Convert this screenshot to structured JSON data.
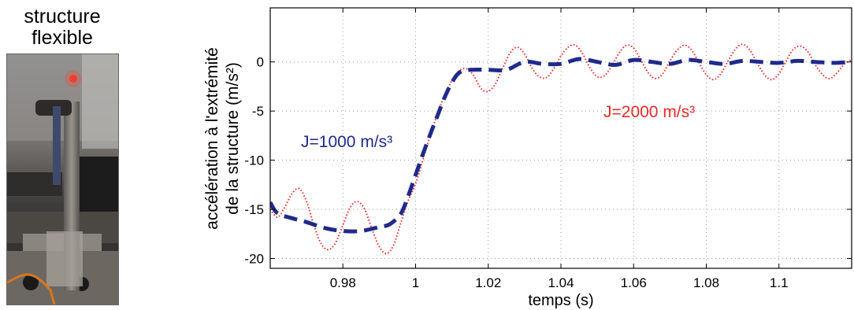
{
  "photo": {
    "title_line1": "structure",
    "title_line2": "flexible"
  },
  "chart_data": {
    "type": "line",
    "xlabel": "temps (s)",
    "ylabel_line1": "accélération à l'extrémité",
    "ylabel_line2": "de la structure (m/s²)",
    "xlim": [
      0.96,
      1.12
    ],
    "ylim": [
      -21,
      5.5
    ],
    "xticks": [
      0.98,
      1,
      1.02,
      1.04,
      1.06,
      1.08,
      1.1
    ],
    "xtick_labels": [
      "0.98",
      "1",
      "1.02",
      "1.04",
      "1.06",
      "1.08",
      "1.1"
    ],
    "yticks": [
      0,
      -5,
      -10,
      -15,
      -20
    ],
    "ytick_labels": [
      "0",
      "-5",
      "-10",
      "-15",
      "-20"
    ],
    "grid": true,
    "series": [
      {
        "name": "J=1000 m/s³",
        "color": "#1f2a8a",
        "style": "dashed",
        "x": [
          0.96,
          0.962,
          0.966,
          0.97,
          0.975,
          0.98,
          0.985,
          0.99,
          0.993,
          0.996,
          0.998,
          1.0,
          1.002,
          1.004,
          1.006,
          1.008,
          1.01,
          1.012,
          1.015,
          1.02,
          1.025,
          1.03,
          1.035,
          1.04,
          1.045,
          1.05,
          1.055,
          1.06,
          1.065,
          1.07,
          1.075,
          1.08,
          1.085,
          1.09,
          1.095,
          1.1,
          1.105,
          1.11,
          1.115,
          1.12
        ],
        "y": [
          -14.3,
          -15.4,
          -15.9,
          -16.3,
          -16.9,
          -17.2,
          -17.2,
          -16.8,
          -16.5,
          -15.4,
          -13.6,
          -11.5,
          -9.4,
          -7.4,
          -5.5,
          -3.6,
          -2.1,
          -1.1,
          -0.8,
          -0.8,
          -0.8,
          0.0,
          -0.2,
          -0.2,
          0.3,
          0.0,
          -0.3,
          0.2,
          0.0,
          -0.2,
          0.2,
          0.0,
          -0.2,
          0.1,
          0.0,
          -0.1,
          0.1,
          0.0,
          -0.1,
          0.0
        ]
      },
      {
        "name": "J=2000 m/s³",
        "color": "#e82a2a",
        "style": "dotted",
        "x": [
          0.96,
          0.962,
          0.964,
          0.966,
          0.968,
          0.97,
          0.972,
          0.974,
          0.976,
          0.978,
          0.98,
          0.982,
          0.984,
          0.986,
          0.988,
          0.99,
          0.992,
          0.994,
          0.996,
          0.998,
          1.0,
          1.002,
          1.004,
          1.006,
          1.008,
          1.01,
          1.012,
          1.014,
          1.016,
          1.018,
          1.02,
          1.022,
          1.024,
          1.026,
          1.028,
          1.03,
          1.032,
          1.034,
          1.036,
          1.038,
          1.04,
          1.042,
          1.044,
          1.046,
          1.048,
          1.05,
          1.052,
          1.054,
          1.056,
          1.058,
          1.06,
          1.062,
          1.064,
          1.066,
          1.068,
          1.07,
          1.072,
          1.074,
          1.076,
          1.078,
          1.08,
          1.082,
          1.084,
          1.086,
          1.088,
          1.09,
          1.092,
          1.094,
          1.096,
          1.098,
          1.1,
          1.102,
          1.104,
          1.106,
          1.108,
          1.11,
          1.112,
          1.114,
          1.116,
          1.118,
          1.12
        ],
        "y": [
          -15.0,
          -15.8,
          -14.8,
          -13.4,
          -12.9,
          -14.2,
          -16.6,
          -18.5,
          -19.1,
          -18.4,
          -16.6,
          -14.8,
          -14.2,
          -15.0,
          -17.0,
          -18.8,
          -19.5,
          -18.6,
          -16.3,
          -14.1,
          -12.4,
          -10.0,
          -7.5,
          -5.3,
          -3.4,
          -1.9,
          -0.9,
          -0.7,
          -1.4,
          -2.7,
          -3.0,
          -2.2,
          -0.6,
          0.9,
          1.5,
          0.8,
          -0.6,
          -1.5,
          -1.6,
          -0.7,
          0.6,
          1.5,
          1.7,
          0.8,
          -0.6,
          -1.5,
          -1.4,
          -0.4,
          0.9,
          1.7,
          1.4,
          0.2,
          -1.1,
          -1.7,
          -1.2,
          0.1,
          1.2,
          1.7,
          1.2,
          -0.1,
          -1.3,
          -1.8,
          -1.2,
          0.1,
          1.3,
          1.8,
          1.2,
          -0.1,
          -1.3,
          -1.8,
          -1.2,
          0.1,
          1.3,
          1.6,
          1.0,
          -0.3,
          -1.3,
          -1.7,
          -1.1,
          -0.2,
          0.2
        ]
      }
    ],
    "annotations": [
      {
        "text": "J=1000 m/s³",
        "color": "#1f2a8a"
      },
      {
        "text": "J=2000 m/s³",
        "color": "#e82a2a"
      }
    ]
  }
}
